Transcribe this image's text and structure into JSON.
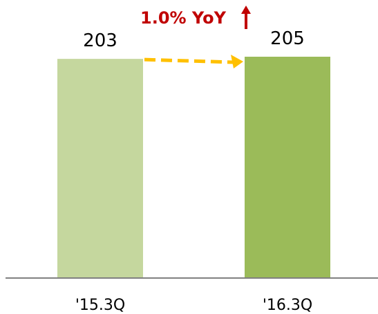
{
  "chart_data": {
    "type": "bar",
    "categories": [
      "'15.3Q",
      "'16.3Q"
    ],
    "values": [
      203,
      205
    ],
    "data_labels": [
      "203",
      "205"
    ],
    "annotation": {
      "text": "1.0% YoY",
      "arrow": "up",
      "from_category": "'15.3Q",
      "to_category": "'16.3Q"
    },
    "bar_colors": [
      "#c5d79e",
      "#9bbb59"
    ],
    "annotation_color": "#c00000",
    "trend_arrow_color": "#ffc000",
    "axis_color": "#808080",
    "ylim": [
      0,
      205
    ],
    "grid": false,
    "legend": "none",
    "title": "",
    "xlabel": "",
    "ylabel": ""
  }
}
